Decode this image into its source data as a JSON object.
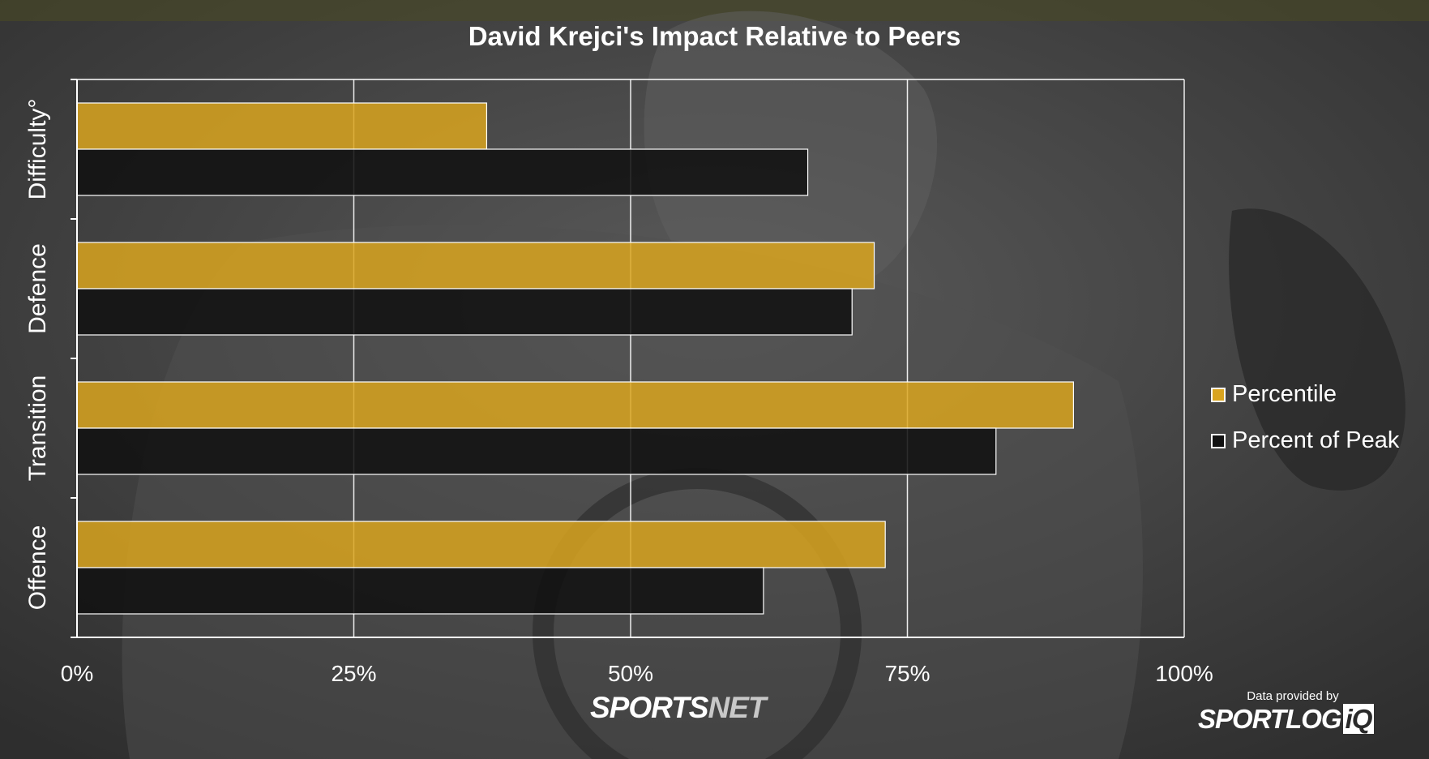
{
  "chart_data": {
    "type": "bar",
    "orientation": "horizontal",
    "title": "David Krejci's Impact Relative to Peers",
    "categories": [
      "Offence",
      "Transition",
      "Defence",
      "Difficulty°"
    ],
    "series": [
      {
        "name": "Percentile",
        "values": [
          73,
          90,
          72,
          37
        ],
        "color": "#d9a41f"
      },
      {
        "name": "Percent of Peak",
        "values": [
          62,
          83,
          70,
          66
        ],
        "color": "#111111"
      }
    ],
    "xlim": [
      0,
      100
    ],
    "xticks": [
      "0%",
      "25%",
      "50%",
      "75%",
      "100%"
    ],
    "grid": true,
    "legend_position": "right"
  },
  "branding": {
    "sportsnet_main": "SPORTS",
    "sportsnet_suffix": "NET",
    "provided_by": "Data provided by",
    "sportlogiq_main": "SPORTLOG",
    "sportlogiq_suffix": "iQ"
  },
  "colors": {
    "background": "#3a3a3a",
    "gridline": "#ffffff",
    "text": "#ffffff"
  }
}
